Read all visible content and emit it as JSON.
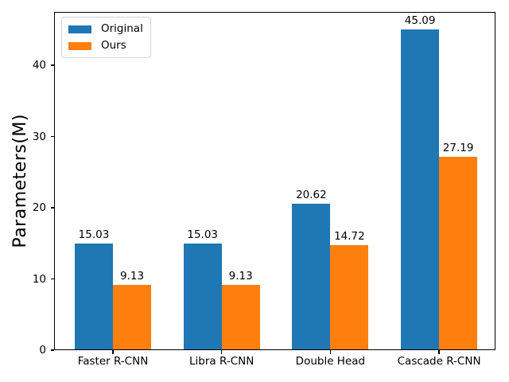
{
  "chart_data": {
    "type": "bar",
    "title": "",
    "xlabel": "",
    "ylabel": "Parameters(M)",
    "categories": [
      "Faster R-CNN",
      "Libra R-CNN",
      "Double Head",
      "Cascade R-CNN"
    ],
    "series": [
      {
        "name": "Original",
        "color": "#1f77b4",
        "values": [
          15.03,
          15.03,
          20.62,
          45.09
        ],
        "labels": [
          "15.03",
          "15.03",
          "20.62",
          "45.09"
        ]
      },
      {
        "name": "Ours",
        "color": "#ff7f0e",
        "values": [
          9.13,
          9.13,
          14.72,
          27.19
        ],
        "labels": [
          "9.13",
          "9.13",
          "14.72",
          "27.19"
        ]
      }
    ],
    "ylim": [
      0,
      47.5
    ],
    "yticks": [
      0,
      10,
      20,
      30,
      40
    ],
    "grid": false,
    "legend_position": "upper left",
    "bar_value_labels": true
  },
  "colors": {
    "background": "#ffffff",
    "text": "#000000",
    "spine": "#000000",
    "legend_border": "#d4d4d4"
  }
}
